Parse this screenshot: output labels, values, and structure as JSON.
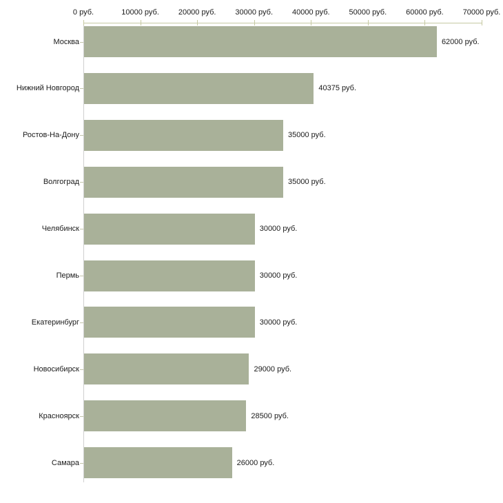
{
  "chart_data": {
    "type": "bar",
    "orientation": "horizontal",
    "unit": "руб.",
    "categories": [
      "Москва",
      "Нижний Новгород",
      "Ростов-На-Дону",
      "Волгоград",
      "Челябинск",
      "Пермь",
      "Екатеринбург",
      "Новосибирск",
      "Красноярск",
      "Самара"
    ],
    "values": [
      62000,
      40375,
      35000,
      35000,
      30000,
      30000,
      30000,
      29000,
      28500,
      26000
    ],
    "value_labels": [
      "62000 руб.",
      "40375 руб.",
      "35000 руб.",
      "35000 руб.",
      "30000 руб.",
      "30000 руб.",
      "30000 руб.",
      "29000 руб.",
      "28500 руб.",
      "26000 руб."
    ],
    "x_axis": {
      "min": 0,
      "max": 70000,
      "ticks": [
        0,
        10000,
        20000,
        30000,
        40000,
        50000,
        60000,
        70000
      ],
      "tick_labels": [
        "0 руб.",
        "10000 руб.",
        "20000 руб.",
        "30000 руб.",
        "40000 руб.",
        "50000 руб.",
        "60000 руб.",
        "70000 руб."
      ]
    },
    "legend": "none",
    "grid": "off",
    "colors": {
      "bar": "#a9b199",
      "axis_line": "#c6c9a2",
      "y_axis_line": "#cfcfcf",
      "category_tick": "#c2c4a8",
      "text": "#1a1a1a",
      "background": "#ffffff"
    }
  }
}
